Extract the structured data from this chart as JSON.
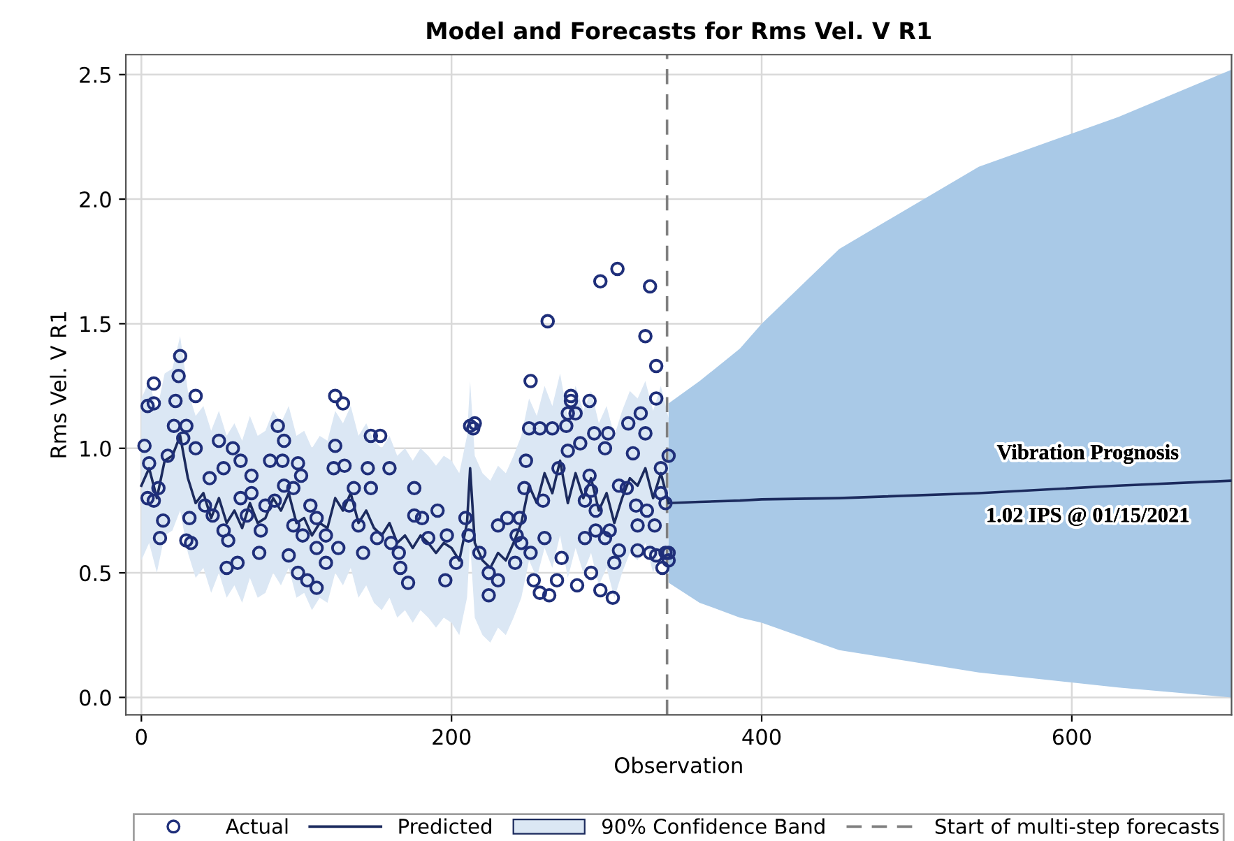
{
  "chart_data": {
    "type": "scatter",
    "title": "Model and Forecasts for Rms Vel. V R1",
    "xlabel": "Observation",
    "ylabel": "Rms Vel. V R1",
    "xlim": [
      -10,
      703
    ],
    "ylim": [
      -0.07,
      2.58
    ],
    "xticks": [
      0,
      200,
      400,
      600
    ],
    "yticks": [
      {
        "value": 0,
        "label": "0.0"
      },
      0.5,
      {
        "value": 1,
        "label": "1.0"
      },
      1.5,
      {
        "value": 2,
        "label": "2.0"
      },
      2.5
    ],
    "grid": true,
    "legend": "bottom",
    "series": [
      {
        "name": "Predicted",
        "type": "line",
        "color": "#1c2b5e",
        "x": [
          0,
          5,
          10,
          15,
          20,
          25,
          30,
          35,
          40,
          45,
          50,
          55,
          60,
          65,
          70,
          75,
          80,
          85,
          90,
          95,
          100,
          105,
          110,
          115,
          120,
          125,
          130,
          135,
          140,
          145,
          150,
          155,
          160,
          165,
          170,
          175,
          180,
          185,
          190,
          195,
          200,
          205,
          210,
          212,
          215,
          220,
          225,
          230,
          235,
          240,
          245,
          250,
          255,
          260,
          265,
          270,
          275,
          280,
          285,
          290,
          295,
          300,
          305,
          310,
          315,
          320,
          325,
          330,
          335,
          340
        ],
        "values": [
          0.85,
          0.92,
          0.8,
          0.95,
          0.97,
          1.05,
          0.88,
          0.78,
          0.82,
          0.72,
          0.8,
          0.7,
          0.75,
          0.68,
          0.78,
          0.7,
          0.72,
          0.8,
          0.75,
          0.82,
          0.7,
          0.72,
          0.65,
          0.7,
          0.68,
          0.8,
          0.75,
          0.82,
          0.7,
          0.75,
          0.68,
          0.65,
          0.7,
          0.62,
          0.65,
          0.6,
          0.65,
          0.62,
          0.58,
          0.62,
          0.6,
          0.55,
          0.7,
          0.92,
          0.62,
          0.55,
          0.52,
          0.58,
          0.55,
          0.62,
          0.7,
          0.85,
          0.78,
          0.9,
          0.82,
          0.95,
          0.78,
          0.9,
          0.8,
          0.88,
          0.75,
          0.82,
          0.7,
          0.8,
          0.88,
          0.85,
          0.92,
          0.8,
          0.9,
          0.78
        ],
        "lower": [
          0.55,
          0.62,
          0.5,
          0.65,
          0.67,
          0.75,
          0.58,
          0.48,
          0.52,
          0.42,
          0.5,
          0.4,
          0.45,
          0.38,
          0.48,
          0.4,
          0.42,
          0.5,
          0.45,
          0.52,
          0.4,
          0.42,
          0.35,
          0.4,
          0.38,
          0.5,
          0.45,
          0.52,
          0.4,
          0.45,
          0.38,
          0.35,
          0.4,
          0.32,
          0.35,
          0.3,
          0.35,
          0.32,
          0.28,
          0.32,
          0.3,
          0.25,
          0.4,
          0.62,
          0.32,
          0.25,
          0.22,
          0.28,
          0.25,
          0.32,
          0.4,
          0.55,
          0.48,
          0.6,
          0.52,
          0.65,
          0.48,
          0.6,
          0.5,
          0.58,
          0.45,
          0.52,
          0.4,
          0.5,
          0.58,
          0.55,
          0.62,
          0.5,
          0.6,
          0.47
        ],
        "upper": [
          1.2,
          1.27,
          1.15,
          1.3,
          1.32,
          1.45,
          1.23,
          1.13,
          1.17,
          1.07,
          1.15,
          1.05,
          1.1,
          1.03,
          1.13,
          1.05,
          1.07,
          1.15,
          1.1,
          1.17,
          1.05,
          1.07,
          1.0,
          1.05,
          1.03,
          1.15,
          1.1,
          1.17,
          1.05,
          1.1,
          1.03,
          1.0,
          1.05,
          0.97,
          1.0,
          0.95,
          1.0,
          0.97,
          0.93,
          0.97,
          0.95,
          0.9,
          1.05,
          1.27,
          0.97,
          0.9,
          0.87,
          0.93,
          0.9,
          0.97,
          1.05,
          1.2,
          1.13,
          1.25,
          1.17,
          1.3,
          1.13,
          1.25,
          1.15,
          1.23,
          1.1,
          1.17,
          1.05,
          1.15,
          1.23,
          1.2,
          1.27,
          1.15,
          1.25,
          1.12
        ]
      },
      {
        "type": "line",
        "color": "#1c2b5e",
        "x": [
          340,
          360,
          386,
          400,
          450,
          540,
          630,
          703
        ],
        "values": [
          0.78,
          0.785,
          0.79,
          0.795,
          0.8,
          0.82,
          0.85,
          0.87
        ],
        "lower": [
          0.46,
          0.38,
          0.32,
          0.3,
          0.19,
          0.1,
          0.04,
          0.0
        ],
        "upper": [
          1.18,
          1.27,
          1.4,
          1.5,
          1.8,
          2.13,
          2.33,
          2.52
        ]
      },
      {
        "name": "Actual",
        "color": "#1f2f7a",
        "marker": "circle",
        "x": [
          25,
          24,
          22,
          8,
          4,
          8,
          35,
          21,
          29,
          2,
          27,
          35,
          50,
          59,
          64,
          88,
          92,
          83,
          91,
          101,
          103,
          71,
          53,
          44,
          17,
          5,
          11,
          4,
          8,
          14,
          12,
          31,
          32,
          29,
          41,
          46,
          53,
          56,
          64,
          71,
          68,
          77,
          80,
          86,
          92,
          98,
          98,
          104,
          109,
          113,
          119,
          124,
          131,
          125,
          125,
          130,
          148,
          154,
          146,
          160,
          148,
          137,
          134,
          140,
          143,
          152,
          161,
          167,
          172,
          166,
          176,
          176,
          76,
          55,
          62,
          95,
          101,
          107,
          113,
          119,
          127,
          113,
          181,
          191,
          185,
          197,
          209,
          211,
          203,
          196,
          212,
          215,
          214,
          218,
          224,
          224,
          230,
          230,
          236,
          244,
          242,
          241,
          245,
          251,
          253,
          257,
          263,
          268,
          271,
          260,
          259,
          247,
          248,
          251,
          250,
          257,
          265,
          274,
          275,
          280,
          277,
          277,
          289,
          262,
          269,
          275,
          283,
          289,
          286,
          290,
          292,
          301,
          299,
          293,
          293,
          299,
          302,
          308,
          305,
          304,
          296,
          290,
          281,
          286,
          296,
          307,
          328,
          325,
          332,
          332,
          314,
          322,
          325,
          317,
          308,
          313,
          319,
          320,
          326,
          331,
          320,
          328,
          332,
          338,
          340,
          336,
          335,
          340,
          338,
          335,
          340
        ],
        "values": [
          1.37,
          1.29,
          1.19,
          1.26,
          1.17,
          1.18,
          1.21,
          1.09,
          1.09,
          1.01,
          1.04,
          1.0,
          1.03,
          1.0,
          0.95,
          1.09,
          1.03,
          0.95,
          0.95,
          0.94,
          0.89,
          0.89,
          0.92,
          0.88,
          0.97,
          0.94,
          0.84,
          0.8,
          0.79,
          0.71,
          0.64,
          0.72,
          0.62,
          0.63,
          0.77,
          0.73,
          0.67,
          0.63,
          0.8,
          0.82,
          0.73,
          0.67,
          0.77,
          0.79,
          0.85,
          0.84,
          0.69,
          0.65,
          0.77,
          0.72,
          0.65,
          0.92,
          0.93,
          1.01,
          1.21,
          1.18,
          1.05,
          1.05,
          0.92,
          0.92,
          0.84,
          0.84,
          0.77,
          0.69,
          0.58,
          0.64,
          0.62,
          0.52,
          0.46,
          0.58,
          0.84,
          0.73,
          0.58,
          0.52,
          0.54,
          0.57,
          0.5,
          0.47,
          0.44,
          0.54,
          0.6,
          0.6,
          0.72,
          0.75,
          0.64,
          0.65,
          0.72,
          0.65,
          0.54,
          0.47,
          1.09,
          1.1,
          1.08,
          0.58,
          0.5,
          0.41,
          0.47,
          0.69,
          0.72,
          0.72,
          0.65,
          0.54,
          0.62,
          0.58,
          0.47,
          0.42,
          0.41,
          0.47,
          0.56,
          0.64,
          0.79,
          0.84,
          0.95,
          1.27,
          1.08,
          1.08,
          1.08,
          1.09,
          1.14,
          1.14,
          1.21,
          1.19,
          1.19,
          1.51,
          0.92,
          0.99,
          1.02,
          0.89,
          0.79,
          0.83,
          1.06,
          1.06,
          1.0,
          0.75,
          0.67,
          0.64,
          0.67,
          0.59,
          0.54,
          0.4,
          0.43,
          0.5,
          0.45,
          0.64,
          1.67,
          1.72,
          1.65,
          1.45,
          1.33,
          1.2,
          1.1,
          1.14,
          1.06,
          0.98,
          0.85,
          0.84,
          0.77,
          0.69,
          0.75,
          0.69,
          0.59,
          0.58,
          0.57,
          0.58,
          0.58,
          0.52,
          0.82,
          0.97,
          0.78,
          0.92,
          0.55
        ]
      }
    ],
    "ref_lines": [
      {
        "axis": "x",
        "value": 339,
        "label": "Start of multi-step forecasts",
        "color": "#808080",
        "line_style": "dashed"
      }
    ],
    "annotations": [
      "Vibration Prognosis",
      "1.02 IPS @ 01/15/2021",
      "90% Confidence Band"
    ]
  }
}
